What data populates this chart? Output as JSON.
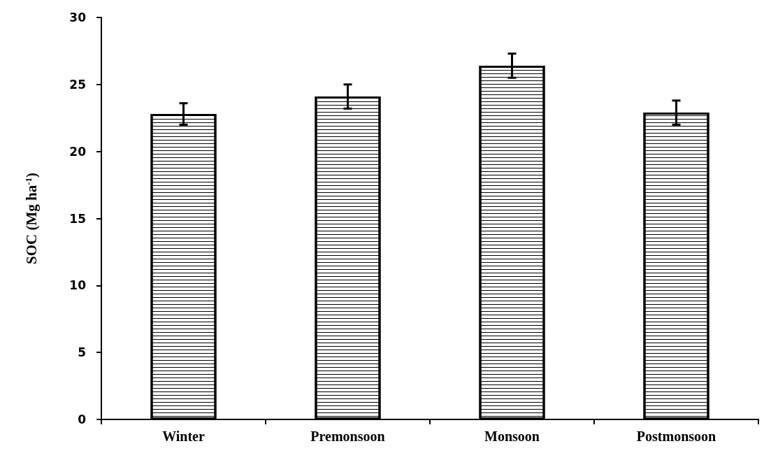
{
  "chart_data": {
    "type": "bar",
    "ylabel": "SOC (Mg ha$^{-1}$)",
    "categories": [
      "Winter",
      "Premonsoon",
      "Monsoon",
      "Postmonsoon"
    ],
    "values": [
      22.8,
      24.1,
      26.4,
      22.9
    ],
    "errors": [
      0.8,
      0.9,
      0.9,
      0.9
    ],
    "color": "#ffffff",
    "ylim": [
      0,
      30
    ],
    "yticks": [
      0,
      5,
      10,
      15,
      20,
      25,
      30
    ],
    "grid": false
  }
}
